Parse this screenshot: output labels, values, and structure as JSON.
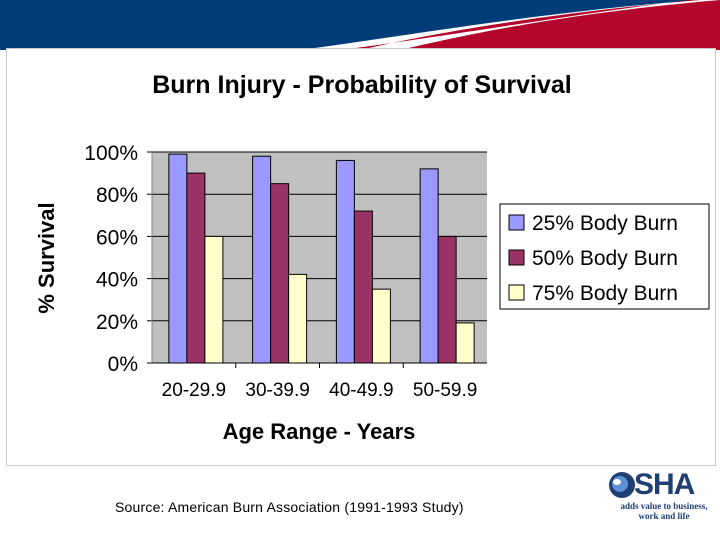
{
  "colors": {
    "banner_navy": "#003d79",
    "banner_red": "#b4052c",
    "plot_bg": "#c0c0c0",
    "series_25": "#9999ff",
    "series_50": "#993366",
    "series_75": "#ffffcc",
    "logo_navy": "#1f3f73"
  },
  "footer": {
    "source": "Source:  American Burn Association (1991-1993 Study)"
  },
  "logo": {
    "letters": "SHA",
    "tagline": "adds value to business, work and life"
  },
  "chart_data": {
    "type": "bar",
    "title": "Burn Injury - Probability of Survival",
    "xlabel": "Age Range - Years",
    "ylabel": "% Survival",
    "categories": [
      "20-29.9",
      "30-39.9",
      "40-49.9",
      "50-59.9"
    ],
    "ylim": [
      0,
      100
    ],
    "yticks": [
      0,
      20,
      40,
      60,
      80,
      100
    ],
    "ytick_labels": [
      "0%",
      "20%",
      "40%",
      "60%",
      "80%",
      "100%"
    ],
    "grid": true,
    "legend_position": "right",
    "series": [
      {
        "name": "25% Body Burn",
        "color": "#9999ff",
        "values": [
          99,
          98,
          96,
          92
        ]
      },
      {
        "name": "50% Body Burn",
        "color": "#993366",
        "values": [
          90,
          85,
          72,
          60
        ]
      },
      {
        "name": "75% Body Burn",
        "color": "#ffffcc",
        "values": [
          60,
          42,
          35,
          19
        ]
      }
    ]
  }
}
